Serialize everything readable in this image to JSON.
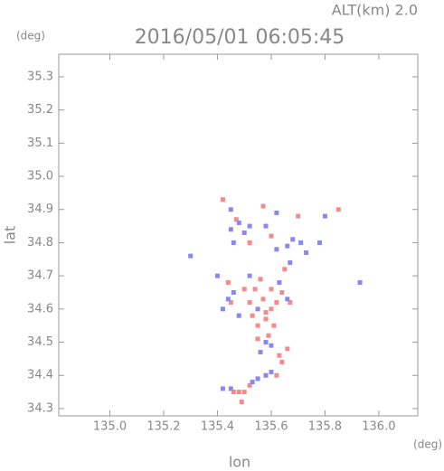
{
  "header": {
    "altitude": "ALT(km) 2.0",
    "unit_left": "(deg)",
    "unit_bottom": "(deg)"
  },
  "chart_data": {
    "type": "scatter",
    "title": "2016/05/01 06:05:45",
    "x_label": "lon",
    "y_label": "lat",
    "xlim": [
      134.81,
      136.145
    ],
    "ylim": [
      34.278,
      35.368
    ],
    "xticks": [
      {
        "value": 135,
        "label": "135.0"
      },
      135.2,
      135.4,
      135.6,
      135.8,
      {
        "value": 136,
        "label": "136.0"
      }
    ],
    "yticks": [
      34.3,
      34.4,
      34.5,
      34.6,
      34.7,
      34.8,
      34.9,
      {
        "value": 35,
        "label": "35.0"
      },
      35.1,
      35.2,
      35.3
    ],
    "series": [
      {
        "color": "#f48a8a",
        "x": [
          135.48,
          135.46,
          135.5,
          135.49,
          135.52,
          135.62,
          135.64,
          135.66,
          135.63,
          135.55,
          135.58,
          135.6,
          135.62,
          135.57,
          135.54,
          135.5,
          135.52,
          135.64,
          135.6,
          135.56,
          135.58,
          135.53,
          135.61,
          135.67,
          135.55,
          135.59,
          135.45,
          135.44,
          135.85,
          135.6,
          135.52,
          135.57,
          135.42,
          135.65,
          135.7,
          135.47
        ],
        "y": [
          34.35,
          34.35,
          34.35,
          34.32,
          34.37,
          34.4,
          34.44,
          34.48,
          34.46,
          34.55,
          34.57,
          34.6,
          34.62,
          34.63,
          34.66,
          34.66,
          34.62,
          34.65,
          34.66,
          34.69,
          34.59,
          34.58,
          34.55,
          34.62,
          34.51,
          34.52,
          34.62,
          34.68,
          34.9,
          34.82,
          34.8,
          34.91,
          34.93,
          34.72,
          34.88,
          34.87
        ]
      },
      {
        "color": "#8888f0",
        "x": [
          135.45,
          135.42,
          135.55,
          135.58,
          135.6,
          135.53,
          135.56,
          135.58,
          135.6,
          135.44,
          135.46,
          135.42,
          135.52,
          135.63,
          135.66,
          135.48,
          135.45,
          135.48,
          135.5,
          135.52,
          135.46,
          135.66,
          135.68,
          135.71,
          135.73,
          135.62,
          135.58,
          135.62,
          135.78,
          135.8,
          135.93,
          135.45,
          135.67,
          135.4,
          135.3,
          135.55
        ],
        "y": [
          34.36,
          34.36,
          34.39,
          34.4,
          34.41,
          34.38,
          34.47,
          34.5,
          34.49,
          34.63,
          34.65,
          34.6,
          34.7,
          34.68,
          34.63,
          34.58,
          34.84,
          34.86,
          34.83,
          34.85,
          34.8,
          34.79,
          34.81,
          34.8,
          34.77,
          34.78,
          34.85,
          34.89,
          34.8,
          34.88,
          34.68,
          34.9,
          34.74,
          34.7,
          34.76,
          34.6
        ]
      }
    ]
  }
}
